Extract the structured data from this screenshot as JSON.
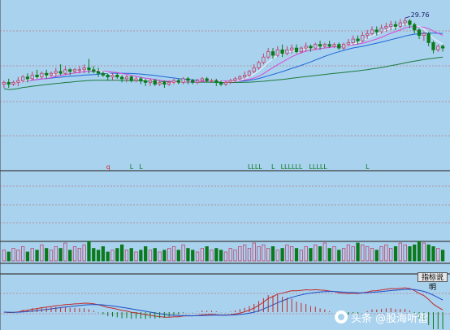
{
  "chart_data": {
    "type": "candlestick",
    "panels": [
      "price",
      "signals",
      "volume",
      "macd"
    ],
    "price_axis": [
      25,
      30.4
    ],
    "high_label": "29.76",
    "colors": {
      "up": "#c2416b",
      "down": "#0b7a1d",
      "ma5": "#ffffff",
      "ma10": "#d94ad6",
      "ma20": "#1e66d9",
      "ma60": "#1d7a3c",
      "grid": "#c0504d"
    },
    "candles": [
      [
        26.1,
        26.2,
        25.9,
        26.3
      ],
      [
        26.2,
        26.1,
        25.9,
        26.4
      ],
      [
        26.1,
        26.2,
        26.0,
        26.3
      ],
      [
        26.2,
        26.3,
        26.0,
        26.5
      ],
      [
        26.3,
        26.5,
        26.2,
        26.6
      ],
      [
        26.5,
        26.4,
        26.2,
        26.7
      ],
      [
        26.4,
        26.6,
        26.3,
        26.8
      ],
      [
        26.6,
        26.5,
        26.4,
        26.9
      ],
      [
        26.5,
        26.7,
        26.4,
        26.8
      ],
      [
        26.7,
        26.6,
        26.4,
        26.9
      ],
      [
        26.6,
        26.7,
        26.5,
        26.8
      ],
      [
        26.7,
        26.8,
        26.5,
        27.0
      ],
      [
        26.8,
        26.7,
        26.6,
        27.2
      ],
      [
        26.7,
        26.9,
        26.6,
        27.1
      ],
      [
        26.9,
        26.8,
        26.6,
        27.0
      ],
      [
        26.8,
        26.9,
        26.7,
        27.0
      ],
      [
        26.9,
        26.9,
        26.7,
        27.1
      ],
      [
        26.9,
        27.0,
        26.7,
        27.2
      ],
      [
        27.0,
        26.9,
        26.7,
        27.5
      ],
      [
        26.9,
        26.8,
        26.7,
        27.1
      ],
      [
        26.8,
        26.7,
        26.5,
        27.0
      ],
      [
        26.7,
        26.6,
        26.5,
        26.8
      ],
      [
        26.6,
        26.5,
        26.3,
        26.7
      ],
      [
        26.5,
        26.6,
        26.3,
        26.7
      ],
      [
        26.6,
        26.5,
        26.4,
        26.7
      ],
      [
        26.5,
        26.4,
        26.2,
        26.6
      ],
      [
        26.4,
        26.5,
        26.2,
        26.6
      ],
      [
        26.5,
        26.3,
        26.2,
        26.6
      ],
      [
        26.3,
        26.4,
        26.2,
        26.5
      ],
      [
        26.4,
        26.3,
        26.1,
        26.5
      ],
      [
        26.3,
        26.2,
        26.0,
        26.4
      ],
      [
        26.2,
        26.3,
        26.0,
        26.4
      ],
      [
        26.3,
        26.1,
        26.0,
        26.4
      ],
      [
        26.1,
        26.2,
        26.0,
        26.3
      ],
      [
        26.2,
        26.1,
        25.9,
        26.3
      ],
      [
        26.1,
        26.2,
        26.0,
        26.3
      ],
      [
        26.2,
        26.3,
        26.1,
        26.4
      ],
      [
        26.3,
        26.2,
        26.1,
        26.4
      ],
      [
        26.2,
        26.4,
        26.1,
        26.5
      ],
      [
        26.4,
        26.3,
        26.1,
        26.5
      ],
      [
        26.3,
        26.2,
        26.1,
        26.4
      ],
      [
        26.2,
        26.3,
        26.1,
        26.4
      ],
      [
        26.3,
        26.4,
        26.2,
        26.5
      ],
      [
        26.4,
        26.3,
        26.2,
        26.5
      ],
      [
        26.3,
        26.3,
        26.2,
        26.4
      ],
      [
        26.3,
        26.2,
        26.0,
        26.4
      ],
      [
        26.2,
        26.1,
        26.0,
        26.3
      ],
      [
        26.1,
        26.2,
        26.0,
        26.3
      ],
      [
        26.2,
        26.3,
        26.1,
        26.4
      ],
      [
        26.3,
        26.4,
        26.2,
        26.5
      ],
      [
        26.4,
        26.5,
        26.3,
        26.6
      ],
      [
        26.5,
        26.6,
        26.4,
        26.8
      ],
      [
        26.6,
        26.8,
        26.5,
        26.9
      ],
      [
        26.8,
        27.0,
        26.7,
        27.2
      ],
      [
        27.0,
        27.3,
        26.9,
        27.4
      ],
      [
        27.3,
        27.6,
        27.2,
        27.8
      ],
      [
        27.6,
        27.9,
        27.5,
        28.1
      ],
      [
        27.9,
        27.7,
        27.5,
        28.1
      ],
      [
        27.7,
        28.0,
        27.6,
        28.2
      ],
      [
        28.0,
        27.8,
        27.6,
        28.3
      ],
      [
        27.8,
        28.0,
        27.7,
        28.2
      ],
      [
        28.0,
        28.1,
        27.8,
        28.3
      ],
      [
        28.1,
        27.9,
        27.8,
        28.3
      ],
      [
        27.9,
        28.1,
        27.8,
        28.2
      ],
      [
        28.1,
        28.2,
        27.9,
        28.4
      ],
      [
        28.2,
        28.1,
        27.9,
        28.3
      ],
      [
        28.1,
        28.3,
        28.0,
        28.4
      ],
      [
        28.3,
        28.2,
        28.0,
        28.5
      ],
      [
        28.2,
        28.3,
        28.1,
        28.4
      ],
      [
        28.3,
        28.2,
        28.1,
        28.5
      ],
      [
        28.2,
        28.3,
        28.1,
        28.4
      ],
      [
        28.3,
        28.1,
        28.0,
        28.4
      ],
      [
        28.1,
        28.3,
        28.0,
        28.4
      ],
      [
        28.3,
        28.4,
        28.2,
        28.6
      ],
      [
        28.4,
        28.6,
        28.3,
        28.8
      ],
      [
        28.6,
        28.5,
        28.3,
        28.8
      ],
      [
        28.5,
        28.8,
        28.4,
        29.0
      ],
      [
        28.8,
        28.9,
        28.6,
        29.1
      ],
      [
        28.9,
        29.1,
        28.8,
        29.3
      ],
      [
        29.1,
        29.0,
        28.8,
        29.3
      ],
      [
        29.0,
        29.2,
        28.9,
        29.4
      ],
      [
        29.2,
        29.3,
        29.0,
        29.5
      ],
      [
        29.3,
        29.4,
        29.1,
        29.6
      ],
      [
        29.4,
        29.3,
        29.1,
        29.6
      ],
      [
        29.3,
        29.5,
        29.2,
        29.7
      ],
      [
        29.5,
        29.6,
        29.3,
        29.76
      ],
      [
        29.6,
        29.4,
        29.2,
        29.7
      ],
      [
        29.4,
        29.1,
        28.9,
        29.5
      ],
      [
        29.1,
        28.8,
        28.6,
        29.2
      ],
      [
        28.8,
        28.9,
        28.5,
        29.0
      ],
      [
        28.9,
        28.4,
        28.2,
        29.0
      ],
      [
        28.4,
        28.0,
        27.8,
        28.5
      ],
      [
        28.0,
        28.2,
        27.9,
        28.3
      ],
      [
        28.2,
        28.1,
        27.9,
        28.3
      ]
    ],
    "volume": [
      6,
      5,
      7,
      6,
      8,
      5,
      7,
      6,
      9,
      7,
      6,
      8,
      7,
      10,
      6,
      8,
      7,
      9,
      11,
      7,
      6,
      8,
      5,
      6,
      7,
      9,
      6,
      7,
      5,
      6,
      8,
      6,
      7,
      5,
      6,
      7,
      8,
      6,
      9,
      7,
      6,
      5,
      7,
      8,
      6,
      7,
      6,
      5,
      7,
      6,
      8,
      9,
      7,
      10,
      8,
      9,
      7,
      8,
      6,
      7,
      9,
      8,
      7,
      6,
      8,
      7,
      9,
      8,
      10,
      7,
      8,
      6,
      7,
      9,
      8,
      10,
      9,
      8,
      7,
      6,
      8,
      9,
      7,
      8,
      10,
      9,
      8,
      9,
      11,
      10,
      9,
      8,
      7,
      6
    ],
    "signal_labels": [
      {
        "i": 22,
        "text": "q"
      },
      {
        "i": 27,
        "text": "L"
      },
      {
        "i": 29,
        "text": "L"
      },
      {
        "i": 52,
        "text": "LLLL"
      },
      {
        "i": 57,
        "text": "L"
      },
      {
        "i": 59,
        "text": "LLLLLL"
      },
      {
        "i": 65,
        "text": "LLLLL"
      },
      {
        "i": 77,
        "text": "L"
      }
    ],
    "indicator_button": "指标说明",
    "watermark": "头条 @股海听雷"
  }
}
